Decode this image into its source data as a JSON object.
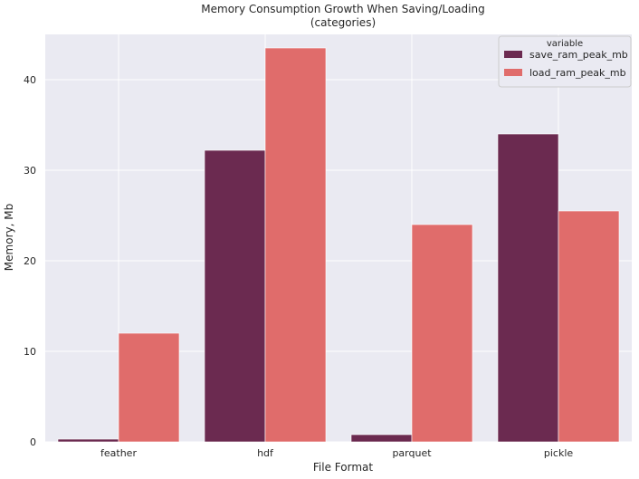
{
  "chart_data": {
    "type": "bar",
    "title": "Memory Consumption Growth When Saving/Loading",
    "subtitle": "(categories)",
    "xlabel": "File Format",
    "ylabel": "Memory, Mb",
    "categories": [
      "feather",
      "hdf",
      "parquet",
      "pickle"
    ],
    "ylim": [
      0,
      45
    ],
    "yticks": [
      0,
      10,
      20,
      30,
      40
    ],
    "grid": true,
    "legend": {
      "title": "variable",
      "position": "top-right"
    },
    "series": [
      {
        "name": "save_ram_peak_mb",
        "color": "#6b2a50",
        "values": [
          0.3,
          32.2,
          0.8,
          34.0
        ]
      },
      {
        "name": "load_ram_peak_mb",
        "color": "#e06c6b",
        "values": [
          12.0,
          43.5,
          24.0,
          25.5
        ]
      }
    ],
    "colors": {
      "plot_background": "#eaeaf2",
      "grid": "#ffffff"
    }
  }
}
